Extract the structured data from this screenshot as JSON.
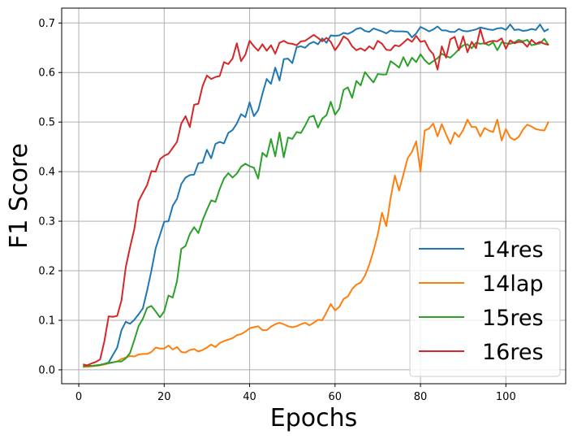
{
  "chart_data": {
    "type": "line",
    "title": "",
    "xlabel": "Epochs",
    "ylabel": "F1 Score",
    "xlim": [
      -4,
      114
    ],
    "ylim": [
      -0.028,
      0.73
    ],
    "xticks": [
      0,
      20,
      40,
      60,
      80,
      100
    ],
    "yticks": [
      0.0,
      0.1,
      0.2,
      0.3,
      0.4,
      0.5,
      0.6,
      0.7
    ],
    "xtick_labels": [
      "0",
      "20",
      "40",
      "60",
      "80",
      "100"
    ],
    "ytick_labels": [
      "0.0",
      "0.1",
      "0.2",
      "0.3",
      "0.4",
      "0.5",
      "0.6",
      "0.7"
    ],
    "grid": true,
    "legend_position": "lower-right",
    "x": [
      1,
      2,
      3,
      4,
      5,
      6,
      7,
      8,
      9,
      10,
      11,
      12,
      13,
      14,
      15,
      16,
      17,
      18,
      19,
      20,
      21,
      22,
      23,
      24,
      25,
      26,
      27,
      28,
      29,
      30,
      31,
      32,
      33,
      34,
      35,
      36,
      37,
      38,
      39,
      40,
      41,
      42,
      43,
      44,
      45,
      46,
      47,
      48,
      49,
      50,
      51,
      52,
      53,
      54,
      55,
      56,
      57,
      58,
      59,
      60,
      61,
      62,
      63,
      64,
      65,
      66,
      67,
      68,
      69,
      70,
      71,
      72,
      73,
      74,
      75,
      76,
      77,
      78,
      79,
      80,
      81,
      82,
      83,
      84,
      85,
      86,
      87,
      88,
      89,
      90,
      91,
      92,
      93,
      94,
      95,
      96,
      97,
      98,
      99,
      100,
      101,
      102,
      103,
      104,
      105,
      106,
      107,
      108,
      109,
      110
    ],
    "series": [
      {
        "name": "14res",
        "color": "#1f77b4",
        "values": [
          0.006,
          0.007,
          0.008,
          0.009,
          0.01,
          0.012,
          0.015,
          0.03,
          0.045,
          0.08,
          0.097,
          0.093,
          0.101,
          0.112,
          0.124,
          0.16,
          0.2,
          0.245,
          0.272,
          0.299,
          0.3,
          0.331,
          0.345,
          0.375,
          0.388,
          0.393,
          0.394,
          0.417,
          0.418,
          0.444,
          0.427,
          0.456,
          0.46,
          0.457,
          0.478,
          0.484,
          0.497,
          0.516,
          0.51,
          0.54,
          0.512,
          0.524,
          0.557,
          0.587,
          0.577,
          0.61,
          0.584,
          0.627,
          0.628,
          0.619,
          0.651,
          0.653,
          0.65,
          0.658,
          0.662,
          0.657,
          0.669,
          0.66,
          0.675,
          0.674,
          0.675,
          0.68,
          0.678,
          0.682,
          0.688,
          0.69,
          0.684,
          0.682,
          0.689,
          0.686,
          0.683,
          0.679,
          0.685,
          0.683,
          0.683,
          0.683,
          0.682,
          0.671,
          0.679,
          0.692,
          0.688,
          0.683,
          0.687,
          0.693,
          0.685,
          0.685,
          0.682,
          0.682,
          0.688,
          0.684,
          0.683,
          0.685,
          0.687,
          0.691,
          0.689,
          0.687,
          0.686,
          0.689,
          0.69,
          0.686,
          0.697,
          0.686,
          0.687,
          0.684,
          0.685,
          0.688,
          0.686,
          0.697,
          0.683,
          0.688
        ]
      },
      {
        "name": "14lap",
        "color": "#ff7f0e",
        "values": [
          0.006,
          0.006,
          0.007,
          0.008,
          0.009,
          0.011,
          0.013,
          0.015,
          0.017,
          0.022,
          0.025,
          0.028,
          0.027,
          0.031,
          0.032,
          0.032,
          0.036,
          0.045,
          0.043,
          0.043,
          0.049,
          0.041,
          0.046,
          0.036,
          0.035,
          0.04,
          0.042,
          0.037,
          0.04,
          0.045,
          0.051,
          0.046,
          0.054,
          0.058,
          0.061,
          0.064,
          0.07,
          0.072,
          0.077,
          0.084,
          0.086,
          0.088,
          0.08,
          0.08,
          0.087,
          0.092,
          0.095,
          0.092,
          0.088,
          0.086,
          0.088,
          0.092,
          0.095,
          0.09,
          0.095,
          0.101,
          0.1,
          0.116,
          0.133,
          0.12,
          0.127,
          0.143,
          0.148,
          0.163,
          0.172,
          0.176,
          0.19,
          0.212,
          0.24,
          0.273,
          0.317,
          0.29,
          0.346,
          0.392,
          0.362,
          0.394,
          0.427,
          0.44,
          0.461,
          0.4,
          0.483,
          0.487,
          0.497,
          0.471,
          0.496,
          0.475,
          0.456,
          0.479,
          0.47,
          0.484,
          0.505,
          0.49,
          0.49,
          0.471,
          0.488,
          0.483,
          0.48,
          0.505,
          0.463,
          0.486,
          0.469,
          0.464,
          0.47,
          0.485,
          0.495,
          0.491,
          0.486,
          0.484,
          0.483,
          0.501
        ]
      },
      {
        "name": "15res",
        "color": "#2ca02c",
        "values": [
          0.007,
          0.008,
          0.008,
          0.009,
          0.01,
          0.012,
          0.014,
          0.015,
          0.017,
          0.017,
          0.023,
          0.034,
          0.06,
          0.088,
          0.103,
          0.125,
          0.129,
          0.118,
          0.106,
          0.118,
          0.15,
          0.146,
          0.179,
          0.244,
          0.25,
          0.274,
          0.288,
          0.276,
          0.302,
          0.323,
          0.342,
          0.339,
          0.365,
          0.386,
          0.397,
          0.388,
          0.396,
          0.41,
          0.416,
          0.411,
          0.408,
          0.386,
          0.438,
          0.43,
          0.466,
          0.431,
          0.479,
          0.429,
          0.469,
          0.466,
          0.48,
          0.478,
          0.493,
          0.51,
          0.513,
          0.489,
          0.507,
          0.514,
          0.541,
          0.515,
          0.527,
          0.565,
          0.57,
          0.549,
          0.583,
          0.574,
          0.601,
          0.59,
          0.58,
          0.597,
          0.596,
          0.596,
          0.623,
          0.617,
          0.61,
          0.631,
          0.613,
          0.63,
          0.621,
          0.637,
          0.625,
          0.617,
          0.623,
          0.629,
          0.638,
          0.633,
          0.63,
          0.638,
          0.647,
          0.655,
          0.657,
          0.649,
          0.66,
          0.658,
          0.659,
          0.655,
          0.661,
          0.645,
          0.661,
          0.659,
          0.658,
          0.661,
          0.666,
          0.663,
          0.666,
          0.655,
          0.657,
          0.659,
          0.668,
          0.655
        ]
      },
      {
        "name": "16res",
        "color": "#d62728",
        "values": [
          0.011,
          0.009,
          0.013,
          0.016,
          0.021,
          0.058,
          0.108,
          0.107,
          0.109,
          0.14,
          0.207,
          0.247,
          0.284,
          0.34,
          0.357,
          0.373,
          0.401,
          0.4,
          0.425,
          0.432,
          0.436,
          0.448,
          0.46,
          0.497,
          0.512,
          0.49,
          0.535,
          0.537,
          0.573,
          0.594,
          0.587,
          0.591,
          0.593,
          0.621,
          0.617,
          0.628,
          0.659,
          0.623,
          0.636,
          0.664,
          0.653,
          0.644,
          0.657,
          0.644,
          0.655,
          0.638,
          0.66,
          0.664,
          0.659,
          0.658,
          0.655,
          0.663,
          0.664,
          0.67,
          0.676,
          0.67,
          0.663,
          0.67,
          0.662,
          0.645,
          0.657,
          0.673,
          0.667,
          0.653,
          0.645,
          0.649,
          0.644,
          0.653,
          0.647,
          0.664,
          0.658,
          0.646,
          0.645,
          0.655,
          0.653,
          0.66,
          0.668,
          0.662,
          0.674,
          0.662,
          0.664,
          0.647,
          0.637,
          0.606,
          0.653,
          0.63,
          0.667,
          0.672,
          0.645,
          0.673,
          0.641,
          0.662,
          0.649,
          0.688,
          0.658,
          0.662,
          0.664,
          0.663,
          0.669,
          0.648,
          0.665,
          0.659,
          0.662,
          0.661,
          0.652,
          0.666,
          0.658,
          0.662,
          0.658,
          0.656
        ]
      }
    ]
  }
}
